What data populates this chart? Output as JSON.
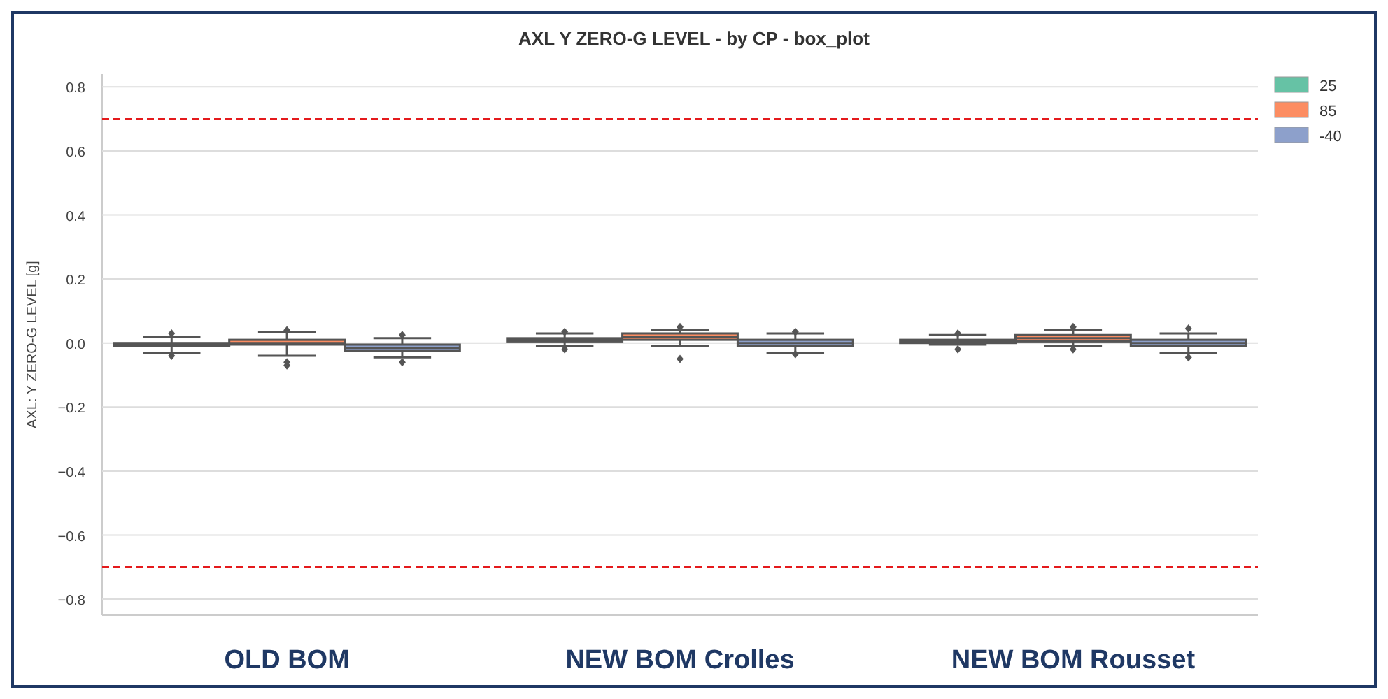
{
  "chart_data": {
    "type": "box",
    "title": "AXL Y ZERO-G LEVEL - by CP - box_plot",
    "ylabel": "AXL: Y ZERO-G LEVEL [g]",
    "categories": [
      "OLD BOM",
      "NEW BOM Crolles",
      "NEW BOM Rousset"
    ],
    "series": [
      {
        "name": "25",
        "color": "#66c2a5",
        "boxes": [
          {
            "low": -0.03,
            "q1": -0.01,
            "median": -0.005,
            "q3": 0.0,
            "high": 0.02,
            "outliers": [
              0.03,
              -0.04
            ]
          },
          {
            "low": -0.01,
            "q1": 0.005,
            "median": 0.01,
            "q3": 0.015,
            "high": 0.03,
            "outliers": [
              0.035,
              -0.02
            ]
          },
          {
            "low": -0.005,
            "q1": 0.0,
            "median": 0.005,
            "q3": 0.01,
            "high": 0.025,
            "outliers": [
              0.03,
              -0.02
            ]
          }
        ]
      },
      {
        "name": "85",
        "color": "#fc8d62",
        "boxes": [
          {
            "low": -0.04,
            "q1": -0.005,
            "median": 0.0,
            "q3": 0.01,
            "high": 0.035,
            "outliers": [
              0.04,
              -0.06,
              -0.07
            ]
          },
          {
            "low": -0.01,
            "q1": 0.01,
            "median": 0.02,
            "q3": 0.03,
            "high": 0.04,
            "outliers": [
              0.05,
              -0.05
            ]
          },
          {
            "low": -0.01,
            "q1": 0.005,
            "median": 0.015,
            "q3": 0.025,
            "high": 0.04,
            "outliers": [
              0.05,
              -0.02
            ]
          }
        ]
      },
      {
        "name": "-40",
        "color": "#8da0cb",
        "boxes": [
          {
            "low": -0.045,
            "q1": -0.025,
            "median": -0.015,
            "q3": -0.005,
            "high": 0.015,
            "outliers": [
              0.025,
              -0.06
            ]
          },
          {
            "low": -0.03,
            "q1": -0.01,
            "median": 0.0,
            "q3": 0.01,
            "high": 0.03,
            "outliers": [
              0.035,
              -0.035
            ]
          },
          {
            "low": -0.03,
            "q1": -0.01,
            "median": 0.0,
            "q3": 0.01,
            "high": 0.03,
            "outliers": [
              0.045,
              -0.045
            ]
          }
        ]
      }
    ],
    "ylim": [
      -0.85,
      0.84
    ],
    "yticks": [
      {
        "value": 0.8,
        "label": "0.8"
      },
      {
        "value": 0.6,
        "label": "0.6"
      },
      {
        "value": 0.4,
        "label": "0.4"
      },
      {
        "value": 0.2,
        "label": "0.2"
      },
      {
        "value": 0,
        "label": "0.0"
      },
      {
        "value": -0.2,
        "label": "−0.2"
      },
      {
        "value": -0.4,
        "label": "−0.4"
      },
      {
        "value": -0.6,
        "label": "−0.6"
      },
      {
        "value": -0.8,
        "label": "−0.8"
      }
    ],
    "grid": "y",
    "legend": "top right",
    "ref_lines": [
      {
        "axis": "y",
        "value": 0.7,
        "color": "#e41a1c",
        "line_style": "dashed"
      },
      {
        "axis": "y",
        "value": -0.7,
        "color": "#e41a1c",
        "line_style": "dashed"
      }
    ]
  }
}
